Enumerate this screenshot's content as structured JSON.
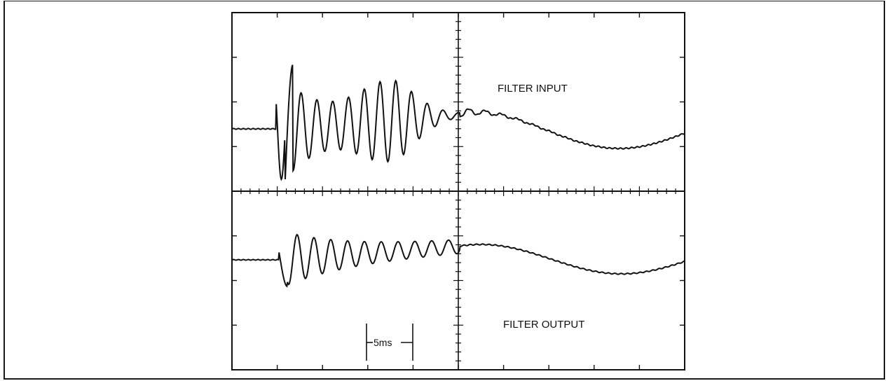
{
  "figure": {
    "top_trace_label": "FILTER INPUT",
    "bottom_trace_label": "FILTER OUTPUT",
    "time_scale_label": "5ms"
  },
  "colors": {
    "ink": "#111111",
    "background": "#ffffff"
  },
  "graticule": {
    "major_divisions_x": 10,
    "major_divisions_y": 8,
    "minor_ticks_per_division": 5
  }
}
